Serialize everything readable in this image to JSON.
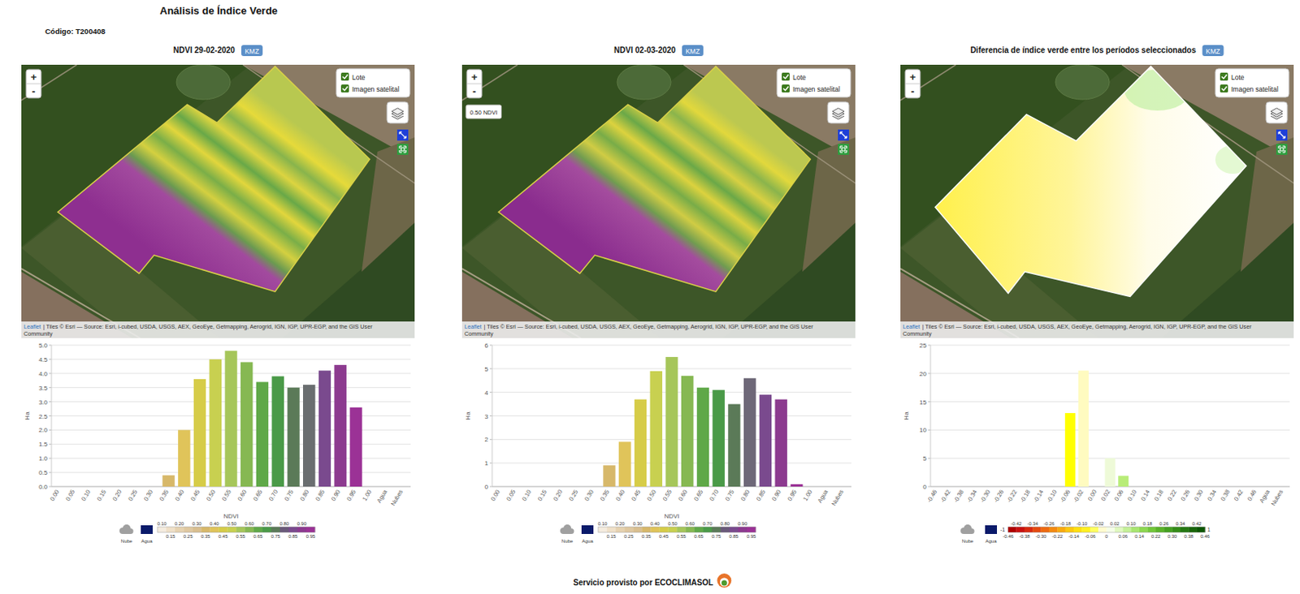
{
  "header": {
    "title": "Análisis de Índice Verde",
    "code": "Código: T200408"
  },
  "map_controls": {
    "zoom_in": "+",
    "zoom_out": "-",
    "layers": [
      "Lote",
      "Imagen satelital"
    ],
    "kmz": "KMZ",
    "tooltip": "0.50 NDVI",
    "attribution_source": "Leaflet",
    "attribution": "| Tiles © Esri — Source: Esri, i-cubed, USDA, USGS, AEX, GeoEye, Getmapping, Aerogrid, IGN, IGP, UPR-EGP, and the GIS User",
    "attribution_2": "Community"
  },
  "footer": "Servicio provisto por ECOCLIMASOL",
  "chart_data": [
    {
      "type": "bar",
      "title": "NDVI 29-02-2020",
      "x_label": "NDVI",
      "y_label": "Ha",
      "categories": [
        "0.00",
        "0.05",
        "0.10",
        "0.15",
        "0.20",
        "0.25",
        "0.30",
        "0.35",
        "0.40",
        "0.45",
        "0.50",
        "0.55",
        "0.60",
        "0.65",
        "0.70",
        "0.75",
        "0.80",
        "0.85",
        "0.90",
        "0.95",
        "1.00",
        "Agua",
        "Nubes"
      ],
      "values": [
        0,
        0,
        0,
        0,
        0,
        0,
        0,
        0.4,
        2.0,
        3.8,
        4.5,
        4.8,
        4.4,
        3.7,
        3.9,
        3.5,
        3.6,
        4.1,
        4.3,
        2.8,
        0,
        0,
        0
      ],
      "colors": [
        "#f2e6d9",
        "#eadbc8",
        "#e6d2b5",
        "#dfc8a0",
        "#d9bf90",
        "#d4b882",
        "#d2b478",
        "#d7b86a",
        "#e0c45a",
        "#d6cc48",
        "#c8d050",
        "#a6c65a",
        "#86b852",
        "#5fa848",
        "#4a9a48",
        "#5b7a58",
        "#6a6e70",
        "#7a4a8e",
        "#8c3a8f",
        "#9b3296",
        "#a02a98",
        "#0a1a6a",
        "#b0b0b0"
      ],
      "ylim": [
        0,
        5
      ],
      "yticks": [
        {
          "value": 0,
          "label": "0.0"
        },
        0.5,
        {
          "value": 1,
          "label": "1.0"
        },
        1.5,
        {
          "value": 2,
          "label": "2.0"
        },
        2.5,
        {
          "value": 3,
          "label": "3.0"
        },
        3.5,
        {
          "value": 4,
          "label": "4.0"
        },
        4.5,
        {
          "value": 5,
          "label": "5.0"
        }
      ],
      "grid": true,
      "color_scale": {
        "nodata_labels": [
          "Nube",
          "Agua"
        ],
        "colors": [
          "#f4ecdf",
          "#efe0c8",
          "#e6d2b0",
          "#dfc8a0",
          "#d9bf90",
          "#d7b86a",
          "#e0c45a",
          "#d6cc48",
          "#c8d050",
          "#a6c65a",
          "#86b852",
          "#5fa848",
          "#4a9a48",
          "#5b7a58",
          "#6a5a7a",
          "#7a4a8e",
          "#8c3a8f",
          "#9b3296"
        ],
        "labels_top": [
          "0.10",
          "0.20",
          "0.30",
          "0.40",
          "0.50",
          "0.60",
          "0.70",
          "0.80",
          "0.90"
        ],
        "labels_bottom": [
          "0.15",
          "0.25",
          "0.35",
          "0.45",
          "0.55",
          "0.65",
          "0.75",
          "0.85",
          "0.95"
        ]
      }
    },
    {
      "type": "bar",
      "title": "NDVI 02-03-2020",
      "x_label": "NDVI",
      "y_label": "Ha",
      "categories": [
        "0.00",
        "0.05",
        "0.10",
        "0.15",
        "0.20",
        "0.25",
        "0.30",
        "0.35",
        "0.40",
        "0.45",
        "0.50",
        "0.55",
        "0.60",
        "0.65",
        "0.70",
        "0.75",
        "0.80",
        "0.85",
        "0.90",
        "0.95",
        "1.00",
        "Agua",
        "Nubes"
      ],
      "values": [
        0,
        0,
        0,
        0,
        0,
        0,
        0,
        0.9,
        1.9,
        3.7,
        4.9,
        5.5,
        4.7,
        4.2,
        4.1,
        3.5,
        4.6,
        3.9,
        3.7,
        0.1,
        0,
        0,
        0
      ],
      "colors": [
        "#f2e6d9",
        "#eadbc8",
        "#e6d2b5",
        "#dfc8a0",
        "#d9bf90",
        "#d4b882",
        "#d2b478",
        "#d7b86a",
        "#e0c45a",
        "#d6cc48",
        "#c8d050",
        "#a6c65a",
        "#86b852",
        "#5fa848",
        "#4a9a48",
        "#5b7a58",
        "#6e6878",
        "#7a4a8e",
        "#8c3a8f",
        "#9b3296",
        "#a02a98",
        "#0a1a6a",
        "#b0b0b0"
      ],
      "ylim": [
        0,
        6
      ],
      "yticks": [
        0,
        1,
        2,
        3,
        4,
        5,
        6
      ],
      "grid": true,
      "color_scale": {
        "nodata_labels": [
          "Nube",
          "Agua"
        ],
        "colors": [
          "#f4ecdf",
          "#efe0c8",
          "#e6d2b0",
          "#dfc8a0",
          "#d9bf90",
          "#d7b86a",
          "#e0c45a",
          "#d6cc48",
          "#c8d050",
          "#a6c65a",
          "#86b852",
          "#5fa848",
          "#4a9a48",
          "#5b7a58",
          "#6a5a7a",
          "#7a4a8e",
          "#8c3a8f",
          "#9b3296"
        ],
        "labels_top": [
          "0.10",
          "0.20",
          "0.30",
          "0.40",
          "0.50",
          "0.60",
          "0.70",
          "0.80",
          "0.90"
        ],
        "labels_bottom": [
          "0.15",
          "0.25",
          "0.35",
          "0.45",
          "0.55",
          "0.65",
          "0.75",
          "0.85",
          "0.95"
        ]
      }
    },
    {
      "type": "bar",
      "title": "Diferencia de índice verde entre los períodos seleccionados",
      "y_label": "Ha",
      "categories": [
        "-0.46",
        "-0.42",
        "-0.38",
        "-0.34",
        "-0.30",
        "-0.26",
        "-0.22",
        "-0.18",
        "-0.14",
        "-0.10",
        "-0.06",
        "-0.02",
        "0.00",
        "0.02",
        "0.06",
        "0.10",
        "0.14",
        "0.18",
        "0.22",
        "0.26",
        "0.30",
        "0.34",
        "0.38",
        "0.42",
        "0.46",
        "Agua",
        "Nubes"
      ],
      "values": [
        0,
        0,
        0,
        0,
        0,
        0,
        0,
        0,
        0,
        0,
        13,
        20.5,
        0,
        5,
        1.9,
        0,
        0,
        0,
        0,
        0,
        0,
        0,
        0,
        0,
        0,
        0,
        0
      ],
      "colors": [
        "#b00000",
        "#c81010",
        "#d82a10",
        "#e54a10",
        "#ee6a10",
        "#f48a10",
        "#f8aa10",
        "#fbc810",
        "#fde010",
        "#fff020",
        "#ffff00",
        "#fffbc0",
        "#ffffff",
        "#eefad8",
        "#b8ec78",
        "#98e050",
        "#80d040",
        "#68c030",
        "#52ac24",
        "#40981c",
        "#308614",
        "#22740e",
        "#166408",
        "#0c5604",
        "#084a02",
        "#0a1a6a",
        "#b0b0b0"
      ],
      "ylim": [
        0,
        25
      ],
      "yticks": [
        0,
        5,
        10,
        15,
        20,
        25
      ],
      "grid": true,
      "color_scale": {
        "nodata_labels": [
          "Nube",
          "Agua"
        ],
        "min_label": "-1",
        "max_label": "1",
        "colors": [
          "#b00000",
          "#c81010",
          "#d82a10",
          "#e54a10",
          "#ee6a10",
          "#f48a10",
          "#f8aa10",
          "#fbc810",
          "#fde010",
          "#fff020",
          "#ffff60",
          "#fffbd0",
          "#f5fde8",
          "#e0f8c0",
          "#c4f098",
          "#a8e670",
          "#8cd850",
          "#72c63a",
          "#5ab22a",
          "#44a020",
          "#348c18",
          "#247812",
          "#18660a",
          "#0c5604"
        ],
        "labels_top": [
          "-0.42",
          "-0.34",
          "-0.26",
          "-0.18",
          "-0.10",
          "-0.02",
          "0.02",
          "0.10",
          "0.18",
          "0.26",
          "0.34",
          "0.42"
        ],
        "labels_bottom": [
          "-0.46",
          "-0.38",
          "-0.30",
          "-0.22",
          "-0.14",
          "-0.06",
          "0",
          "0.06",
          "0.14",
          "0.22",
          "0.30",
          "0.38",
          "0.46"
        ]
      }
    }
  ]
}
